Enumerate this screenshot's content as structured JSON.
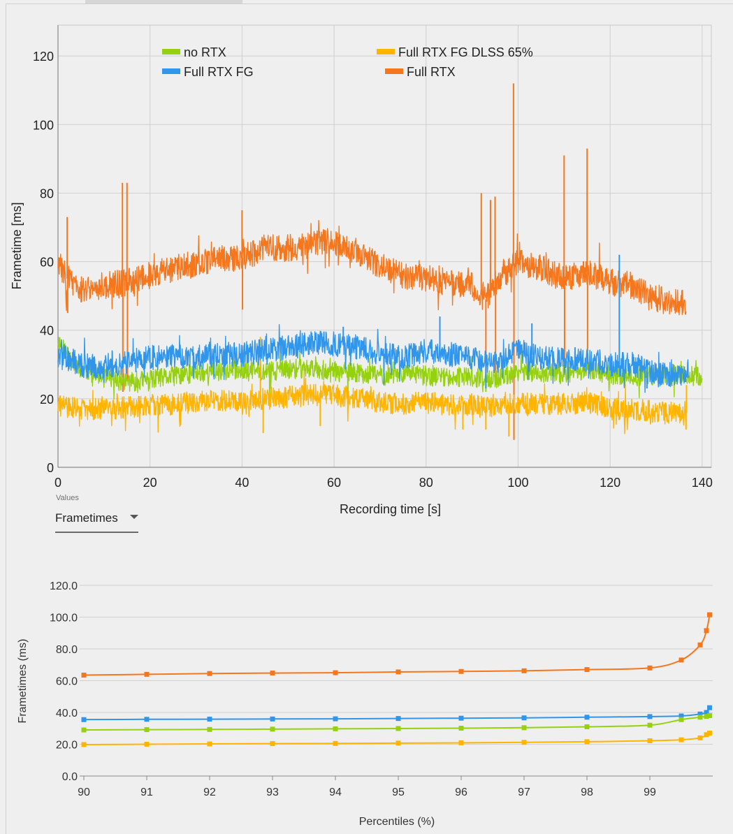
{
  "colors": {
    "no_rtx": "#96d10f",
    "full_rtx_fg": "#2f96ec",
    "full_rtx_fg_dlss": "#ffb400",
    "full_rtx": "#f5771d"
  },
  "values_selector": {
    "label": "Values",
    "selected": "Frametimes",
    "icon": "caret-down-icon"
  },
  "chart_data": [
    {
      "type": "line",
      "title": "",
      "xlabel": "Recording time [s]",
      "ylabel": "Frametime [ms]",
      "xlim": [
        0,
        142
      ],
      "ylim": [
        0,
        129
      ],
      "x_ticks": [
        0,
        20,
        40,
        60,
        80,
        100,
        120,
        140
      ],
      "y_ticks": [
        0,
        20,
        40,
        60,
        80,
        100,
        120
      ],
      "grid": true,
      "legend": [
        "no RTX",
        "Full RTX FG DLSS 65%",
        "Full RTX FG",
        "Full RTX"
      ],
      "series": [
        {
          "name": "no RTX",
          "color_key": "no_rtx",
          "noise": 1.6,
          "seed": 11,
          "x": [
            0,
            2,
            5,
            10,
            15,
            20,
            25,
            30,
            35,
            40,
            45,
            50,
            55,
            60,
            65,
            70,
            75,
            80,
            85,
            90,
            95,
            100,
            105,
            110,
            115,
            120,
            125,
            130,
            135,
            140
          ],
          "values": [
            37,
            33,
            29,
            26,
            25,
            25.5,
            26.5,
            27.5,
            28,
            28.5,
            28,
            28.5,
            29,
            28,
            27.5,
            27,
            27.5,
            26.5,
            26.5,
            26,
            25.5,
            28,
            27.5,
            27,
            28.5,
            27,
            26.5,
            27,
            27,
            26.5
          ],
          "spikes": [
            [
              44,
              36
            ],
            [
              46,
              18
            ],
            [
              63,
              19
            ],
            [
              93,
              22
            ]
          ]
        },
        {
          "name": "Full RTX FG DLSS 65%",
          "color_key": "full_rtx_fg_dlss",
          "noise": 1.8,
          "seed": 29,
          "x": [
            0,
            5,
            10,
            15,
            20,
            25,
            30,
            35,
            40,
            45,
            50,
            55,
            60,
            65,
            70,
            75,
            80,
            85,
            90,
            95,
            100,
            105,
            110,
            115,
            120,
            125,
            130,
            136.5
          ],
          "values": [
            18,
            17,
            17,
            17.5,
            18,
            18.5,
            19,
            19.5,
            19.5,
            20,
            20.5,
            21,
            21,
            20,
            19,
            18.5,
            19,
            18,
            18,
            17,
            19,
            18.5,
            18.5,
            19,
            17,
            17,
            16,
            16
          ],
          "spikes": [
            [
              44,
              38
            ],
            [
              44.6,
              10
            ],
            [
              57,
              12
            ],
            [
              88,
              11
            ],
            [
              93,
              11
            ],
            [
              98,
              9
            ],
            [
              136.5,
              11
            ],
            [
              136.6,
              24
            ]
          ]
        },
        {
          "name": "Full RTX FG",
          "color_key": "full_rtx_fg",
          "noise": 2.0,
          "seed": 47,
          "x": [
            0,
            5,
            10,
            15,
            20,
            25,
            30,
            35,
            40,
            45,
            50,
            55,
            60,
            65,
            70,
            75,
            80,
            85,
            90,
            95,
            100,
            105,
            110,
            115,
            120,
            125,
            130,
            135,
            137
          ],
          "values": [
            33,
            30,
            29,
            31,
            32,
            32.5,
            32,
            33,
            33,
            34,
            35,
            36,
            36,
            35,
            33,
            32,
            34,
            33,
            32,
            30,
            34,
            32,
            32,
            31,
            30,
            30,
            27,
            27,
            27
          ],
          "spikes": [
            [
              62,
              41
            ],
            [
              83,
              44
            ],
            [
              93,
              23
            ],
            [
              103,
              42
            ],
            [
              122,
              62
            ],
            [
              128,
              23
            ]
          ]
        },
        {
          "name": "Full RTX",
          "color_key": "full_rtx",
          "noise": 2.2,
          "seed": 83,
          "x": [
            0,
            2,
            5,
            10,
            15,
            20,
            25,
            30,
            35,
            40,
            45,
            50,
            55,
            60,
            65,
            70,
            75,
            80,
            85,
            90,
            93,
            95,
            100,
            105,
            110,
            115,
            120,
            125,
            130,
            136.5
          ],
          "values": [
            60,
            55,
            52,
            53,
            54,
            56,
            58,
            59,
            61,
            61,
            64,
            64,
            65,
            66,
            63,
            59,
            56,
            55,
            54,
            53,
            49,
            54,
            60,
            58,
            55,
            57,
            54,
            53,
            49,
            48
          ],
          "spikes": [
            [
              2,
              73
            ],
            [
              2.1,
              45
            ],
            [
              14,
              83
            ],
            [
              14.1,
              22
            ],
            [
              15,
              83
            ],
            [
              15.1,
              25
            ],
            [
              40,
              75
            ],
            [
              40.1,
              46
            ],
            [
              92,
              80
            ],
            [
              93,
              26
            ],
            [
              94,
              78
            ],
            [
              95,
              79
            ],
            [
              95.1,
              24
            ],
            [
              99,
              112
            ],
            [
              99.1,
              8
            ],
            [
              110,
              91
            ],
            [
              110.1,
              29
            ],
            [
              115,
              93
            ],
            [
              115.1,
              30
            ]
          ]
        }
      ]
    },
    {
      "type": "line",
      "title": "",
      "xlabel": "Percentiles (%)",
      "ylabel": "Frametimes (ms)",
      "xlim": [
        90,
        100
      ],
      "ylim": [
        0,
        120
      ],
      "x_ticks": [
        90,
        91,
        92,
        93,
        94,
        95,
        96,
        97,
        98,
        99
      ],
      "y_ticks": [
        0,
        20,
        40,
        60,
        80,
        100,
        120
      ],
      "y_tick_labels": [
        "0.0",
        "20.0",
        "40.0",
        "60.0",
        "80.0",
        "100.0",
        "120.0"
      ],
      "grid": true,
      "x": [
        90,
        91,
        92,
        93,
        94,
        95,
        96,
        97,
        98,
        99,
        99.5,
        99.8,
        99.9,
        99.95
      ],
      "series": [
        {
          "name": "Full RTX",
          "color_key": "full_rtx",
          "values": [
            63.5,
            64,
            64.5,
            64.8,
            65,
            65.5,
            65.8,
            66.2,
            67,
            68,
            73,
            82.5,
            91.5,
            101.5
          ]
        },
        {
          "name": "Full RTX FG",
          "color_key": "full_rtx_fg",
          "values": [
            35.5,
            35.7,
            35.8,
            35.9,
            36,
            36.2,
            36.4,
            36.6,
            37,
            37.4,
            37.8,
            39,
            40,
            43
          ]
        },
        {
          "name": "no RTX",
          "color_key": "no_rtx",
          "values": [
            29,
            29.2,
            29.3,
            29.5,
            29.7,
            29.9,
            30.1,
            30.4,
            31,
            32,
            35.5,
            37,
            37.5,
            38
          ]
        },
        {
          "name": "Full RTX FG DLSS 65%",
          "color_key": "full_rtx_fg_dlss",
          "values": [
            19.8,
            20,
            20.2,
            20.4,
            20.5,
            20.7,
            20.9,
            21.2,
            21.6,
            22.2,
            22.8,
            24,
            26,
            27
          ]
        }
      ]
    }
  ]
}
